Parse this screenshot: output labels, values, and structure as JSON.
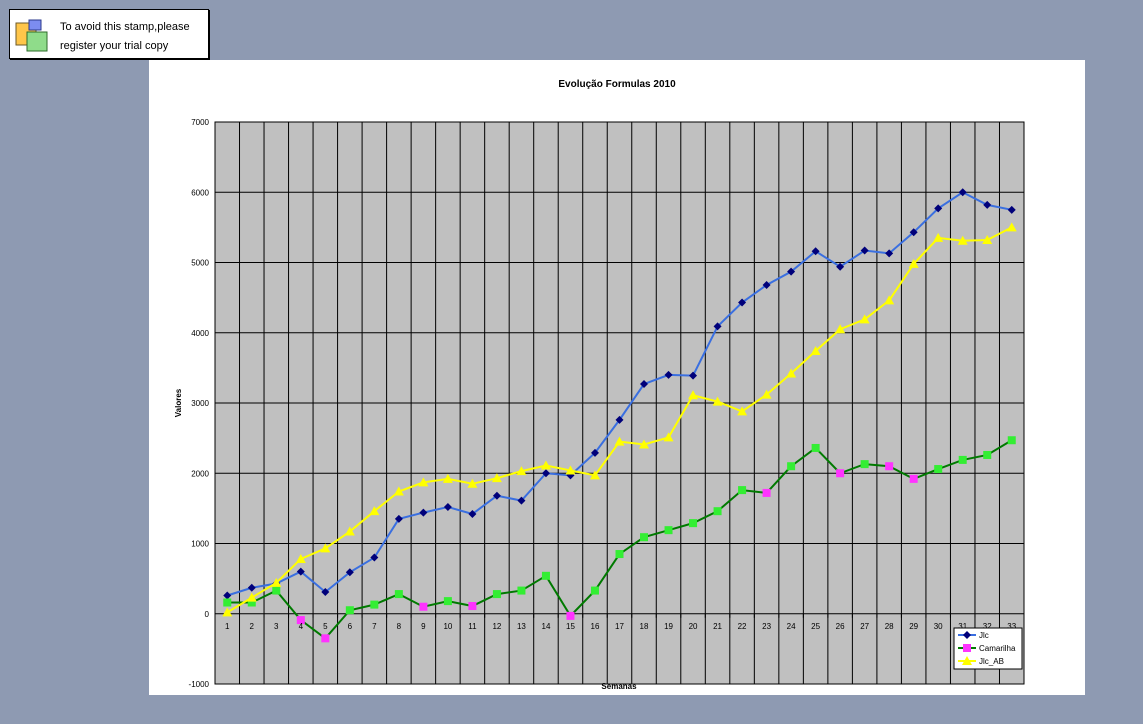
{
  "stamp": {
    "line1": "To avoid this stamp,please",
    "line2": "register your trial copy",
    "icon": "trial-stamp-icon"
  },
  "chart_data": {
    "type": "line",
    "title": "Evolução Formulas 2010",
    "xlabel": "Semanas",
    "ylabel": "Valores",
    "ylim": [
      -1000,
      7000
    ],
    "yticks": [
      -1000,
      0,
      1000,
      2000,
      3000,
      4000,
      5000,
      6000,
      7000
    ],
    "grid": true,
    "legend_position": "bottom-right",
    "plot_background": "#c0c0c0",
    "categories": [
      "1",
      "2",
      "3",
      "4",
      "5",
      "6",
      "7",
      "8",
      "9",
      "10",
      "11",
      "12",
      "13",
      "14",
      "15",
      "16",
      "17",
      "18",
      "19",
      "20",
      "21",
      "22",
      "23",
      "24",
      "25",
      "26",
      "27",
      "28",
      "29",
      "30",
      "31",
      "32",
      "33"
    ],
    "series": [
      {
        "name": "Jlc",
        "color": "#3a6fe0",
        "marker": "diamond",
        "marker_color": "#00007a",
        "values": [
          260,
          370,
          430,
          600,
          310,
          590,
          800,
          1350,
          1440,
          1520,
          1420,
          1680,
          1610,
          2000,
          1970,
          2290,
          2760,
          3270,
          3400,
          3390,
          4090,
          4430,
          4680,
          4870,
          5160,
          4940,
          5170,
          5130,
          5430,
          5770,
          6000,
          5820,
          5750
        ]
      },
      {
        "name": "Camarilha",
        "color": "#007a00",
        "marker": "square",
        "marker_color": "#ff33ff",
        "alt_marker_color": "#33ee33",
        "values": [
          160,
          160,
          330,
          -90,
          -350,
          50,
          130,
          280,
          100,
          180,
          110,
          280,
          330,
          540,
          -30,
          330,
          850,
          1090,
          1190,
          1290,
          1460,
          1760,
          1720,
          2100,
          2360,
          2000,
          2130,
          2100,
          1920,
          2060,
          2190,
          2260,
          2470
        ]
      },
      {
        "name": "Jlc_AB",
        "color": "#ffff00",
        "marker": "triangle",
        "marker_color": "#ffff00",
        "values": [
          20,
          230,
          440,
          780,
          930,
          1170,
          1460,
          1740,
          1870,
          1920,
          1850,
          1930,
          2030,
          2110,
          2040,
          1970,
          2450,
          2410,
          2510,
          3110,
          3020,
          2880,
          3120,
          3420,
          3740,
          4050,
          4190,
          4460,
          4980,
          5350,
          5310,
          5320,
          5500
        ]
      }
    ]
  }
}
